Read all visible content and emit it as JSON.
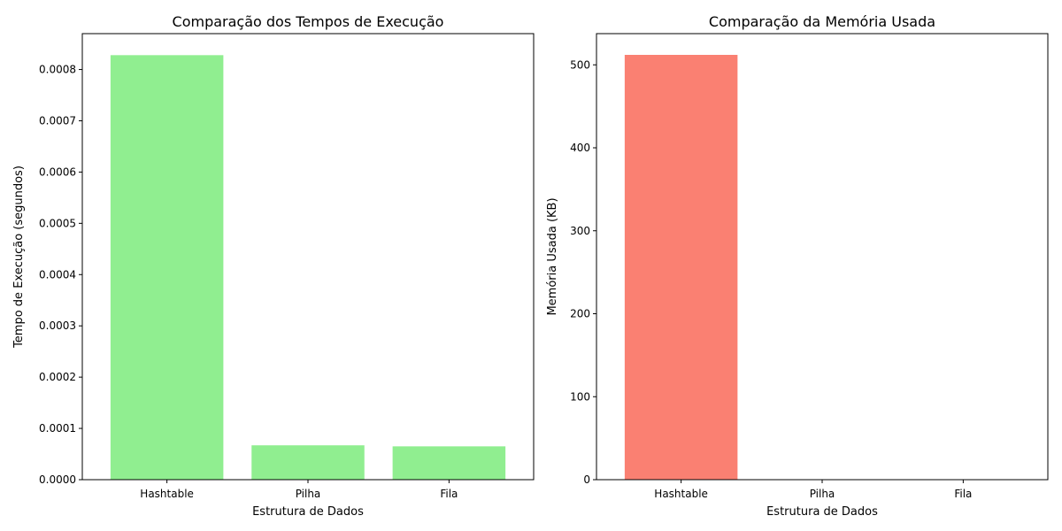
{
  "chart_data": [
    {
      "type": "bar",
      "title": "Comparação dos Tempos de Execução",
      "xlabel": "Estrutura de Dados",
      "ylabel": "Tempo de Execução (segundos)",
      "categories": [
        "Hashtable",
        "Pilha",
        "Fila"
      ],
      "values": [
        0.000828,
        6.7e-05,
        6.5e-05
      ],
      "ylim": [
        0,
        0.00087
      ],
      "yticks": [
        0,
        0.0001,
        0.0002,
        0.0003,
        0.0004,
        0.0005,
        0.0006,
        0.0007,
        0.0008
      ],
      "ytick_labels": [
        "0.0000",
        "0.0001",
        "0.0002",
        "0.0003",
        "0.0004",
        "0.0005",
        "0.0006",
        "0.0007",
        "0.0008"
      ],
      "color": "#90ee90",
      "grid": false
    },
    {
      "type": "bar",
      "title": "Comparação da Memória Usada",
      "xlabel": "Estrutura de Dados",
      "ylabel": "Memória Usada (KB)",
      "categories": [
        "Hashtable",
        "Pilha",
        "Fila"
      ],
      "values": [
        512,
        0,
        0
      ],
      "ylim": [
        0,
        537.6
      ],
      "yticks": [
        0,
        100,
        200,
        300,
        400,
        500
      ],
      "ytick_labels": [
        "0",
        "100",
        "200",
        "300",
        "400",
        "500"
      ],
      "color": "#fa8072",
      "grid": false
    }
  ]
}
